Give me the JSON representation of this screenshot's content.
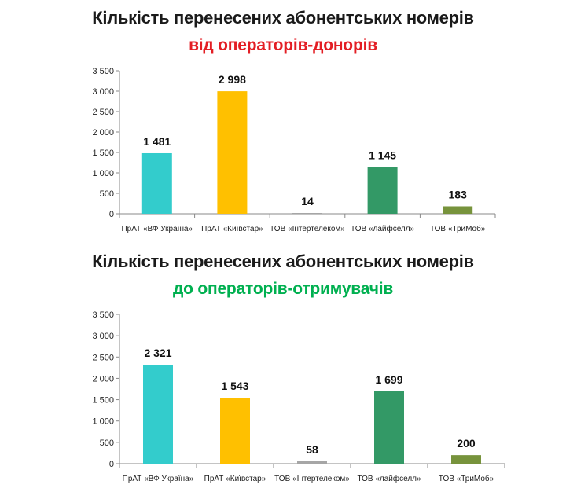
{
  "chart_data": [
    {
      "type": "bar",
      "title": "Кількість  перенесених абонентських номерів",
      "subtitle": "від операторів-донорів",
      "subtitle_color": "#e31e24",
      "categories": [
        "ПрАТ «ВФ Україна»",
        "ПрАТ «Київстар»",
        "ТОВ «Інтертелеком»",
        "ТОВ «лайфселл»",
        "ТОВ «ТриМоб»"
      ],
      "values": [
        1481,
        2998,
        14,
        1145,
        183
      ],
      "value_labels": [
        "1 481",
        "2 998",
        "14",
        "1 145",
        "183"
      ],
      "colors": [
        "#33cccc",
        "#ffc000",
        "#a6a6a6",
        "#339966",
        "#77933c"
      ],
      "ylim": [
        0,
        3500
      ],
      "yticks": [
        0,
        500,
        1000,
        1500,
        2000,
        2500,
        3000,
        3500
      ],
      "ytick_labels": [
        "0",
        "500",
        "1 000",
        "1 500",
        "2 000",
        "2 500",
        "3 000",
        "3 500"
      ],
      "grid": false,
      "legend": "none"
    },
    {
      "type": "bar",
      "title": "Кількість  перенесених абонентських номерів",
      "subtitle": "до операторів-отримувачів",
      "subtitle_color": "#00b050",
      "categories": [
        "ПрАТ «ВФ Україна»",
        "ПрАТ «Київстар»",
        "ТОВ «Інтертелеком»",
        "ТОВ «лайфселл»",
        "ТОВ «ТриМоб»"
      ],
      "values": [
        2321,
        1543,
        58,
        1699,
        200
      ],
      "value_labels": [
        "2 321",
        "1 543",
        "58",
        "1 699",
        "200"
      ],
      "colors": [
        "#33cccc",
        "#ffc000",
        "#a6a6a6",
        "#339966",
        "#77933c"
      ],
      "ylim": [
        0,
        3500
      ],
      "yticks": [
        0,
        500,
        1000,
        1500,
        2000,
        2500,
        3000,
        3500
      ],
      "ytick_labels": [
        "0",
        "500",
        "1 000",
        "1 500",
        "2 000",
        "2 500",
        "3 000",
        "3 500"
      ],
      "grid": false,
      "legend": "none"
    }
  ]
}
